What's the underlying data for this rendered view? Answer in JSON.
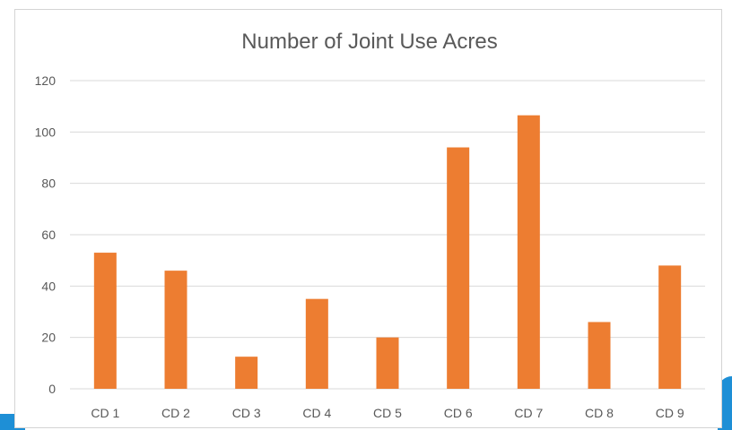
{
  "chart_data": {
    "type": "bar",
    "title": "Number of Joint Use Acres",
    "xlabel": "",
    "ylabel": "",
    "categories": [
      "CD 1",
      "CD 2",
      "CD 3",
      "CD 4",
      "CD 5",
      "CD 6",
      "CD 7",
      "CD 8",
      "CD 9"
    ],
    "values": [
      53,
      46,
      12.5,
      35,
      20,
      94,
      106.5,
      26,
      48
    ],
    "ylim": [
      0,
      120
    ],
    "yticks": [
      0,
      20,
      40,
      60,
      80,
      100,
      120
    ],
    "grid": true,
    "legend": "none",
    "bar_color": "#ed7d31",
    "grid_color": "#d9d9d9"
  }
}
